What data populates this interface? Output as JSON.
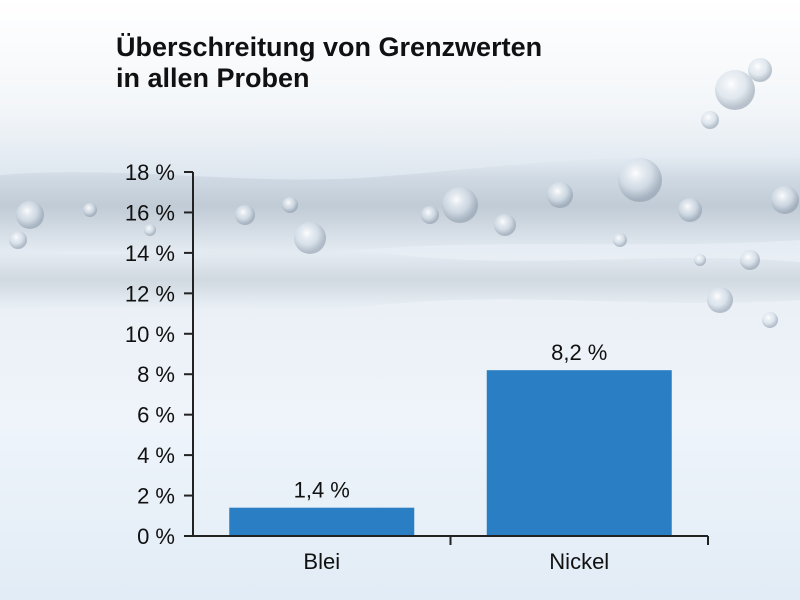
{
  "title": {
    "line1": "Überschreitung von Grenzwerten",
    "line2": "in allen Proben"
  },
  "colors": {
    "bar": "#2a7fc4",
    "axis": "#222222",
    "text": "#111111"
  },
  "chart_data": {
    "type": "bar",
    "title": "Überschreitung von Grenzwerten in allen Proben",
    "categories": [
      "Blei",
      "Nickel"
    ],
    "values": [
      1.4,
      8.2
    ],
    "value_labels": [
      "1,4 %",
      "8,2 %"
    ],
    "ylim": [
      0,
      18
    ],
    "yticks": [
      0,
      2,
      4,
      6,
      8,
      10,
      12,
      14,
      16,
      18
    ],
    "ytick_labels": [
      "0 %",
      "2 %",
      "4 %",
      "6 %",
      "8 %",
      "10 %",
      "12 %",
      "14 %",
      "16 %",
      "18 %"
    ],
    "xlabel": "",
    "ylabel": "",
    "grid": false,
    "legend": "none"
  }
}
